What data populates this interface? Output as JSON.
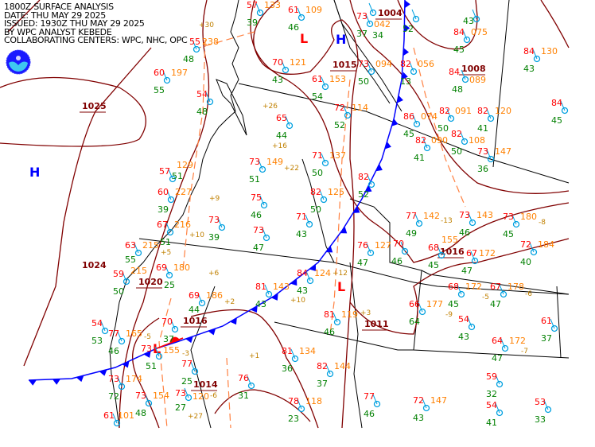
{
  "header": {
    "lines": [
      "1800Z SURFACE ANALYSIS",
      "DATE: THU MAY 29 2025",
      "ISSUED: 1930Z THU MAY 29 2025",
      "BY WPC ANALYST KEBEDE",
      "COLLABORATING CENTERS: WPC, NHC, OPC"
    ]
  },
  "logo": {
    "text": "NOAA"
  },
  "colors": {
    "temperature": "#ff0000",
    "dewpoint": "#008000",
    "pressure": "#ff8000",
    "isobar": "#800000",
    "cold_front": "#0000ff",
    "warm_front": "#ff0000",
    "high": "#0000ff",
    "low": "#ff0000",
    "station": "#00a0e0"
  },
  "pressure_centers": [
    {
      "type": "H",
      "label": ""
    },
    {
      "type": "H",
      "label": ""
    },
    {
      "type": "L",
      "label": ""
    },
    {
      "type": "L",
      "label": ""
    },
    {
      "type": "L",
      "label": ""
    }
  ],
  "isobar_labels": [
    "1025",
    "1004",
    "1015",
    "1016",
    "1020",
    "1014",
    "1011",
    "1016",
    "1024",
    "1008"
  ],
  "stations": [
    {
      "t": "57",
      "d": "39",
      "p": "133"
    },
    {
      "t": "61",
      "d": "46",
      "p": "109"
    },
    {
      "t": "73",
      "d": "37",
      "p": "042"
    },
    {
      "t": "70",
      "d": "43",
      "p": "121"
    },
    {
      "t": "61",
      "d": "54",
      "p": "153"
    },
    {
      "t": "73",
      "d": "50",
      "p": "094"
    },
    {
      "t": "82",
      "d": "13",
      "p": "056"
    },
    {
      "t": "84",
      "d": "45",
      "p": "075"
    },
    {
      "t": "84",
      "d": "48",
      "p": "089"
    },
    {
      "t": "84",
      "d": "43",
      "p": "130"
    },
    {
      "t": "72",
      "d": "52",
      "p": "114"
    },
    {
      "t": "86",
      "d": "45",
      "p": "074"
    },
    {
      "t": "82",
      "d": "50",
      "p": "091"
    },
    {
      "t": "82",
      "d": "41",
      "p": "120"
    },
    {
      "t": "82",
      "d": "41",
      "p": "090"
    },
    {
      "t": "82",
      "d": "50",
      "p": "108"
    },
    {
      "t": "73",
      "d": "36",
      "p": "147"
    },
    {
      "t": "84",
      "d": "45",
      "p": ""
    },
    {
      "t": "71",
      "d": "50",
      "p": "137"
    },
    {
      "t": "73",
      "d": "51",
      "p": "149"
    },
    {
      "t": "82",
      "d": "50",
      "p": "125"
    },
    {
      "t": "82",
      "d": "52",
      "p": ""
    },
    {
      "t": "77",
      "d": "49",
      "p": "142"
    },
    {
      "t": "73",
      "d": "46",
      "p": "143"
    },
    {
      "t": "73",
      "d": "45",
      "p": "180"
    },
    {
      "t": "72",
      "d": "40",
      "p": "184"
    },
    {
      "t": "68",
      "d": "45",
      "p": "155"
    },
    {
      "t": "67",
      "d": "47",
      "p": "172"
    },
    {
      "t": "76",
      "d": "47",
      "p": "127"
    },
    {
      "t": "70",
      "d": "46",
      "p": ""
    },
    {
      "t": "68",
      "d": "45",
      "p": "172"
    },
    {
      "t": "67",
      "d": "47",
      "p": "178"
    },
    {
      "t": "66",
      "d": "64",
      "p": "177"
    },
    {
      "t": "54",
      "d": "43",
      "p": ""
    },
    {
      "t": "64",
      "d": "47",
      "p": "172"
    },
    {
      "t": "61",
      "d": "37",
      "p": ""
    },
    {
      "t": "59",
      "d": "32",
      "p": ""
    },
    {
      "t": "53",
      "d": "33",
      "p": ""
    },
    {
      "t": "54",
      "d": "41",
      "p": ""
    },
    {
      "t": "72",
      "d": "43",
      "p": "147"
    },
    {
      "t": "77",
      "d": "46",
      "p": ""
    },
    {
      "t": "81",
      "d": "36",
      "p": "134"
    },
    {
      "t": "82",
      "d": "37",
      "p": "144"
    },
    {
      "t": "76",
      "d": "31",
      "p": ""
    },
    {
      "t": "78",
      "d": "23",
      "p": "118"
    },
    {
      "t": "81",
      "d": "43",
      "p": "143"
    },
    {
      "t": "84",
      "d": "43",
      "p": "124"
    },
    {
      "t": "81",
      "d": "46",
      "p": "119"
    },
    {
      "t": "69",
      "d": "25",
      "p": "180"
    },
    {
      "t": "69",
      "d": "44",
      "p": "186"
    },
    {
      "t": "70",
      "d": "37",
      "p": ""
    },
    {
      "t": "77",
      "d": "25",
      "p": ""
    },
    {
      "t": "73",
      "d": "27",
      "p": "120"
    },
    {
      "t": "73",
      "d": "48",
      "p": "154"
    },
    {
      "t": "61",
      "d": "",
      "p": "101"
    },
    {
      "t": "77",
      "d": "46",
      "p": "165"
    },
    {
      "t": "54",
      "d": "53",
      "p": ""
    },
    {
      "t": "73",
      "d": "51",
      "p": "155"
    },
    {
      "t": "73",
      "d": "72",
      "p": "174"
    },
    {
      "t": "59",
      "d": "50",
      "p": "215"
    },
    {
      "t": "63",
      "d": "55",
      "p": "215"
    },
    {
      "t": "67",
      "d": "51",
      "p": "216"
    },
    {
      "t": "60",
      "d": "39",
      "p": "227"
    },
    {
      "t": "57",
      "d": "51",
      "p": "129"
    },
    {
      "t": "73",
      "d": "39",
      "p": ""
    },
    {
      "t": "75",
      "d": "46",
      "p": ""
    },
    {
      "t": "73",
      "d": "47",
      "p": ""
    },
    {
      "t": "71",
      "d": "43",
      "p": ""
    },
    {
      "t": "65",
      "d": "44",
      "p": ""
    },
    {
      "t": "54",
      "d": "48",
      "p": ""
    },
    {
      "t": "60",
      "d": "55",
      "p": "197"
    },
    {
      "t": "55",
      "d": "48",
      "p": "238"
    },
    {
      "t": "",
      "d": "34",
      "p": ""
    },
    {
      "t": "",
      "d": "52",
      "p": ""
    },
    {
      "t": "",
      "d": "43",
      "p": ""
    }
  ],
  "tendencies": [
    "+30",
    "+26",
    "+16",
    "+22",
    "+9",
    "+10",
    "+5",
    "+6",
    "+2",
    "-5",
    "-3",
    "+1",
    "-6",
    "+27",
    "+12",
    "+10",
    "+3",
    "-7",
    "-9",
    "-13",
    "-8",
    "-6",
    "-5"
  ]
}
